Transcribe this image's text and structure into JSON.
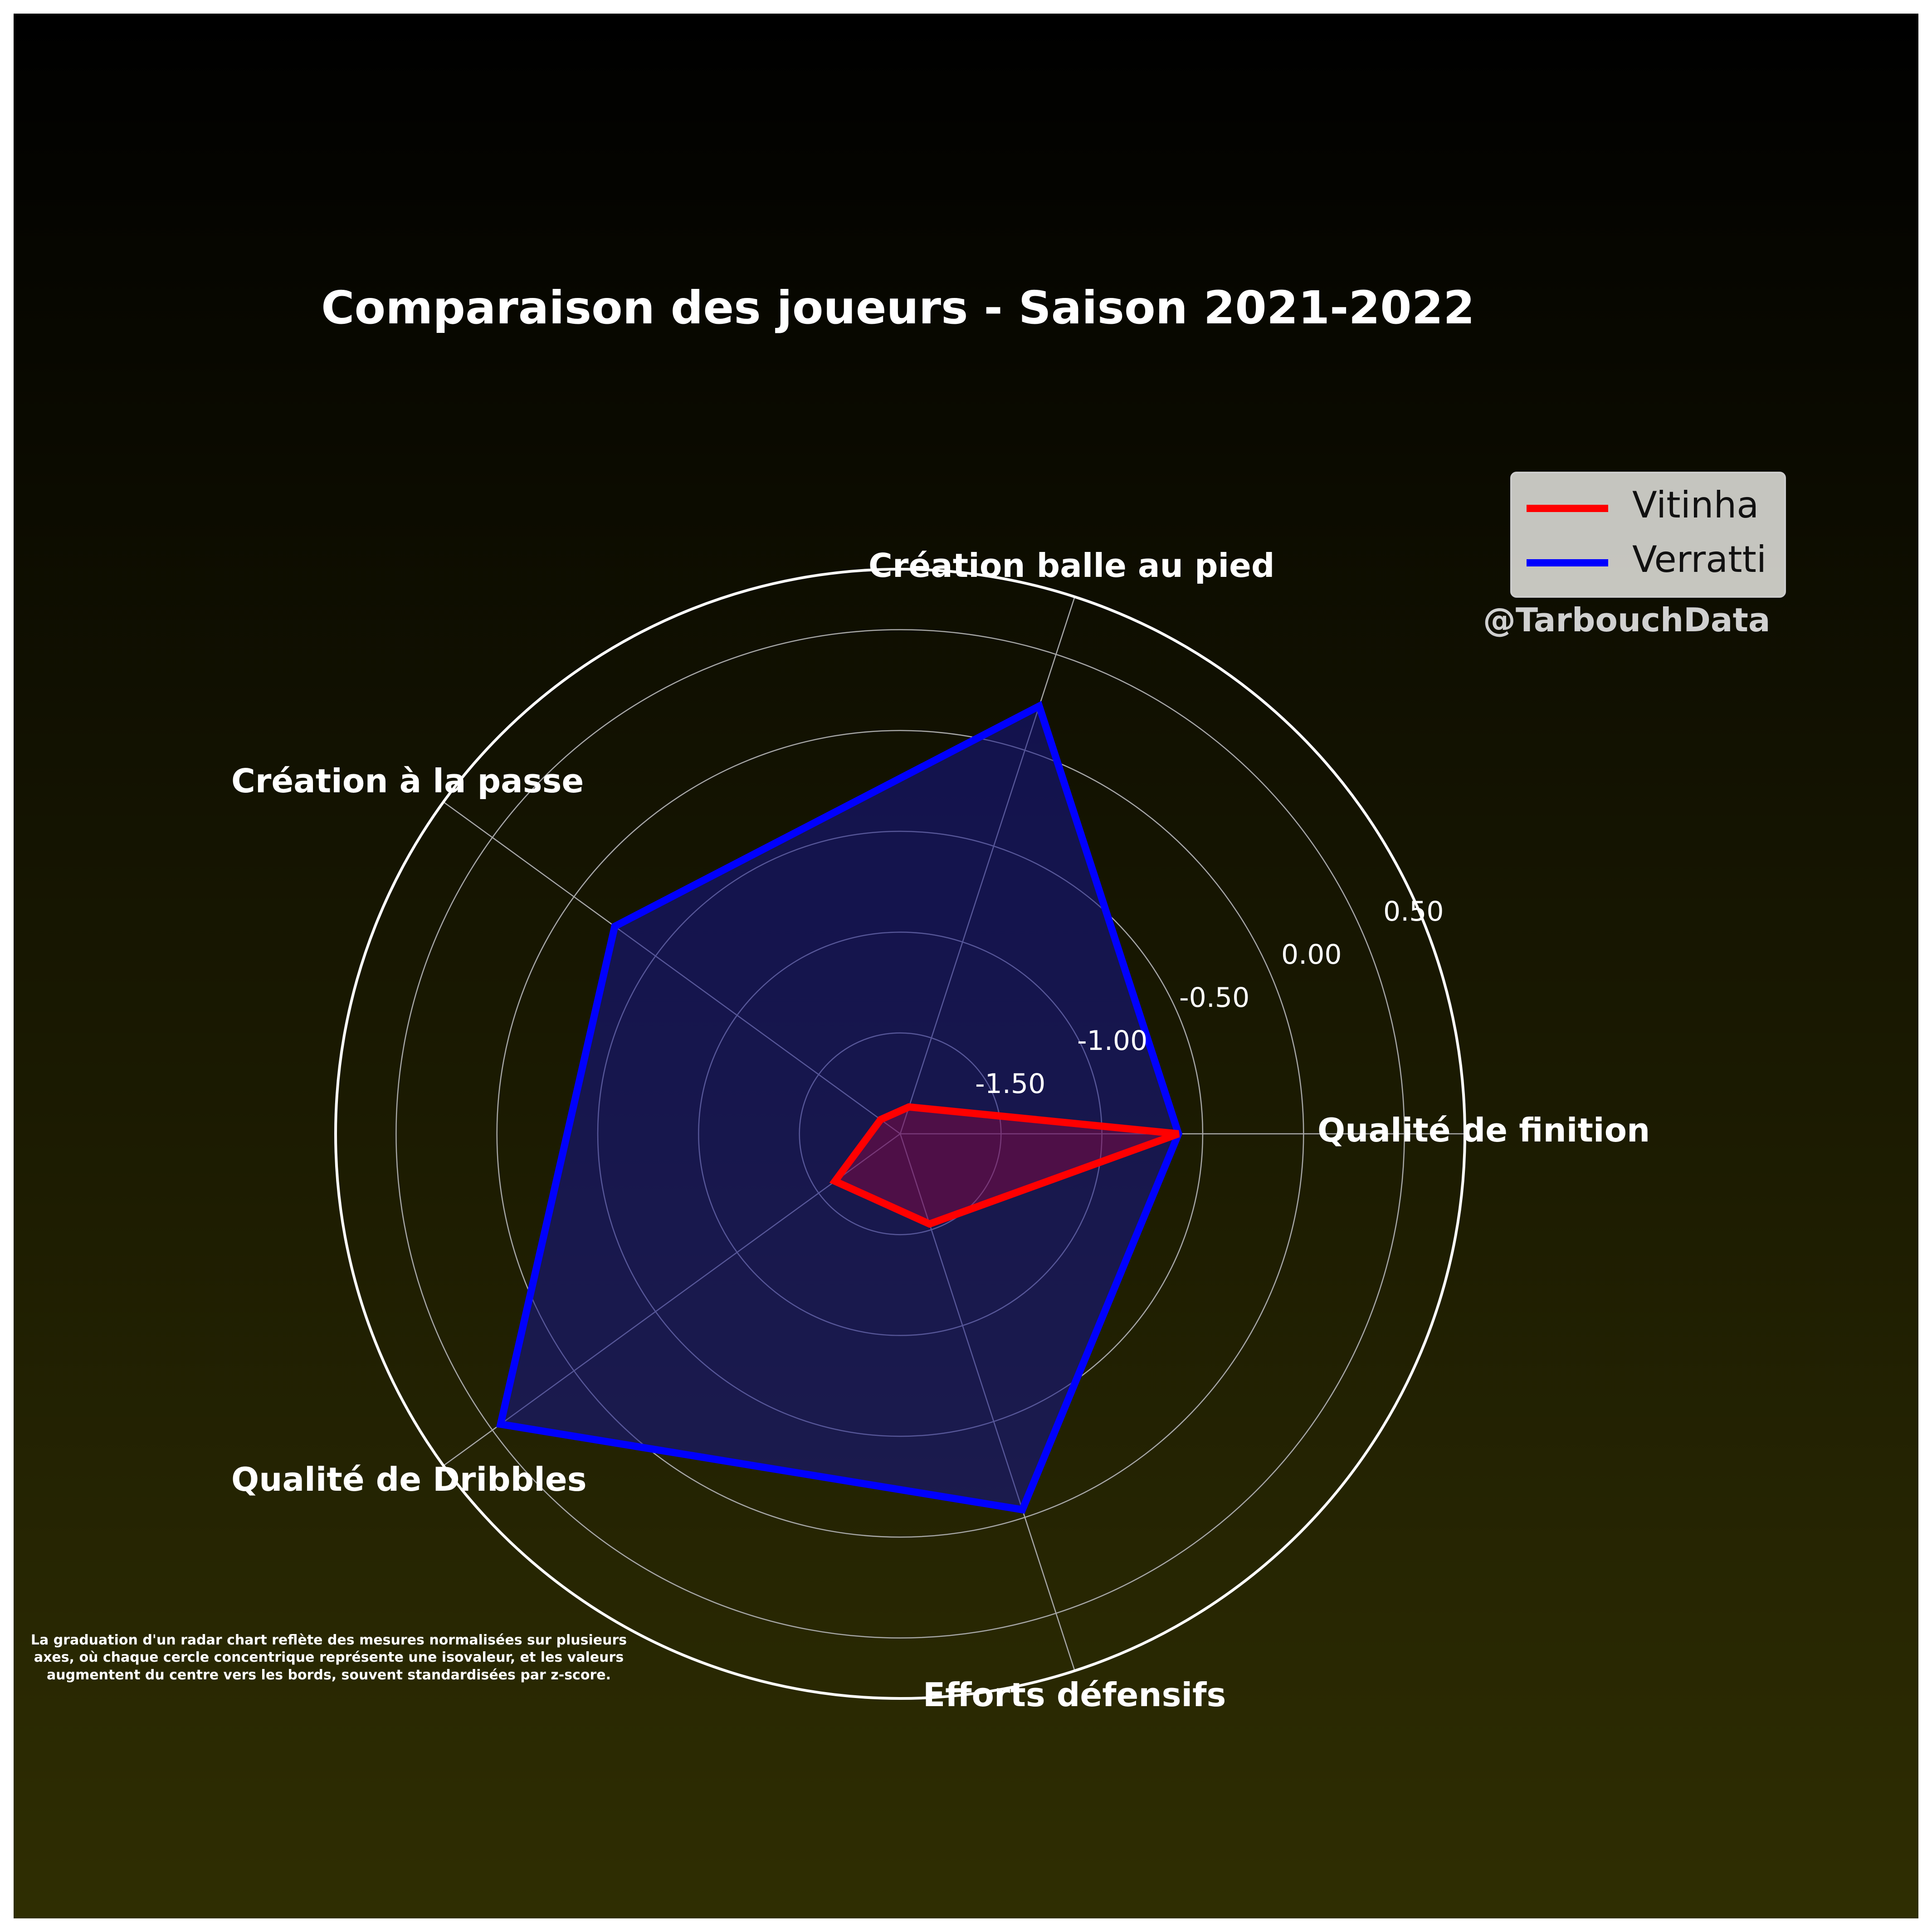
{
  "chart_data": {
    "type": "radar",
    "title": "Comparaison des joueurs - Saison 2021-2022",
    "axes": [
      "Qualité de finition",
      "Création balle au pied",
      "Création à la passe",
      "Qualité de Dribbles",
      "Efforts défensifs"
    ],
    "rlim": [
      -2.0,
      0.8
    ],
    "ticks": [
      -1.5,
      -1.0,
      -0.5,
      0.0,
      0.5
    ],
    "tick_labels": [
      "-1.50",
      "-1.00",
      "-0.50",
      "0.00",
      "0.50"
    ],
    "series": [
      {
        "name": "Vitinha",
        "color": "#ff0000",
        "fill": "rgba(180,0,60,0.35)",
        "values": [
          -0.62,
          -1.86,
          -1.88,
          -1.6,
          -1.53
        ]
      },
      {
        "name": "Verratti",
        "color": "#0000ff",
        "fill": "rgba(20,20,140,0.55)",
        "values": [
          -0.62,
          0.23,
          -0.25,
          0.45,
          -0.04
        ]
      }
    ],
    "legend_position": "top-right",
    "grid": true
  },
  "watermark": "@TarbouchData",
  "footnote": "La graduation d'un radar chart reflète des mesures normalisées sur plusieurs axes, où chaque cercle concentrique représente une isovaleur, et les valeurs augmentent du centre vers les bords, souvent standardisées par z-score."
}
